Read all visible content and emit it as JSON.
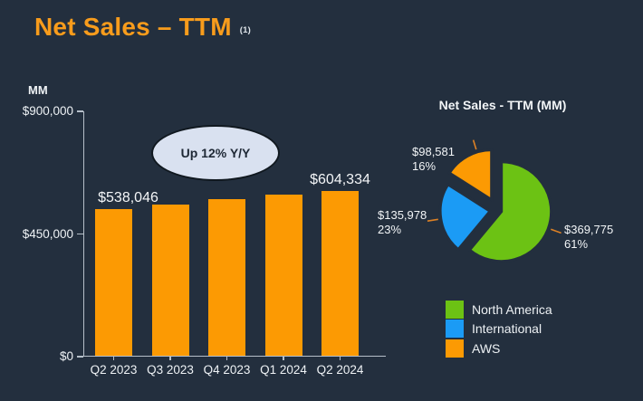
{
  "slide": {
    "title": "Net Sales – TTM",
    "title_superscript": "(1)",
    "background_color": "#232f3e",
    "title_color": "#f89c1c"
  },
  "chart_data": [
    {
      "type": "bar",
      "unit_label": "MM",
      "categories": [
        "Q2 2023",
        "Q3 2023",
        "Q4 2023",
        "Q1 2024",
        "Q2 2024"
      ],
      "values": [
        538046,
        555000,
        574000,
        592000,
        604334
      ],
      "value_labels": [
        "$538,046",
        null,
        null,
        null,
        "$604,334"
      ],
      "ylim": [
        0,
        900000
      ],
      "yticks": [
        {
          "value": 900000,
          "label": "$900,000"
        },
        {
          "value": 450000,
          "label": "$450,000"
        },
        {
          "value": 0,
          "label": "$0"
        }
      ],
      "bar_color": "#fc9a03",
      "axis_color": "#b6bfc9",
      "annotation": "Up 12% Y/Y",
      "annotation_fill": "#d9e1f0",
      "grid": false,
      "note": "middle three bar values estimated from axis scale; only first and last bars carry data labels"
    },
    {
      "type": "pie",
      "title": "Net Sales - TTM (MM)",
      "slices": [
        {
          "name": "North America",
          "value_label": "$369,775",
          "percent_label": "61%",
          "percent": 61,
          "color": "#6cc214"
        },
        {
          "name": "International",
          "value_label": "$135,978",
          "percent_label": "23%",
          "percent": 23,
          "color": "#1b9bf5"
        },
        {
          "name": "AWS",
          "value_label": "$98,581",
          "percent_label": "16%",
          "percent": 16,
          "color": "#fc9a03"
        }
      ],
      "leader_line_color": "#dd8125",
      "legend_position": "bottom-right",
      "start_angle_deg": 0,
      "direction": "clockwise"
    }
  ]
}
